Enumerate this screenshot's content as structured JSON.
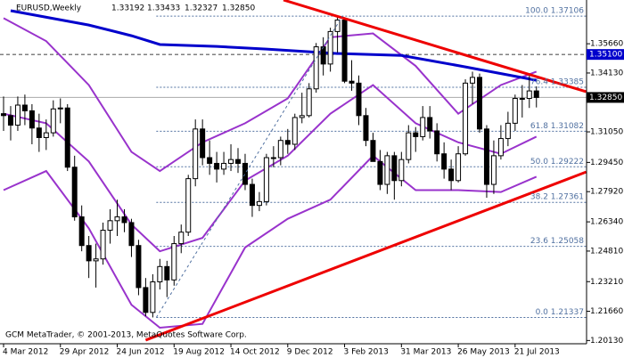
{
  "chart_data": {
    "type": "candlestick",
    "header": {
      "title": "EURUSD,Weekly",
      "values": [
        1.33192,
        1.33433,
        1.32327,
        1.3285
      ],
      "value_labels": [
        "1.33192",
        "1.33433",
        "1.32327",
        "1.32850"
      ]
    },
    "watermark": "GCM MetaTrader, © 2001-2013, MetaQuotes Software Corp.",
    "categories": [
      "4 Mar 2012",
      null,
      null,
      null,
      null,
      null,
      null,
      null,
      "29 Apr 2012",
      null,
      null,
      null,
      null,
      null,
      null,
      null,
      "24 Jun 2012",
      null,
      null,
      null,
      null,
      null,
      null,
      null,
      "19 Aug 2012",
      null,
      null,
      null,
      null,
      null,
      null,
      null,
      "14 Oct 2012",
      null,
      null,
      null,
      null,
      null,
      null,
      null,
      "9 Dec 2012",
      null,
      null,
      null,
      null,
      null,
      null,
      null,
      "3 Feb 2013",
      null,
      null,
      null,
      null,
      null,
      null,
      null,
      "31 Mar 2013",
      null,
      null,
      null,
      null,
      null,
      null,
      null,
      "26 May 2013",
      null,
      null,
      null,
      null,
      null,
      null,
      null,
      "21 Jul 2013",
      null,
      null,
      null
    ],
    "open": [
      1.32,
      1.319,
      1.314,
      1.3245,
      1.3215,
      1.3125,
      1.3075,
      1.31,
      1.3225,
      1.323,
      1.292,
      1.266,
      1.251,
      1.243,
      1.244,
      1.259,
      1.264,
      1.266,
      1.263,
      1.251,
      1.229,
      1.216,
      1.232,
      1.24,
      1.233,
      1.252,
      1.258,
      1.286,
      1.312,
      1.297,
      1.294,
      1.291,
      1.294,
      1.296,
      1.294,
      1.283,
      1.272,
      1.274,
      1.297,
      1.297,
      1.306,
      1.304,
      1.318,
      1.319,
      1.333,
      1.355,
      1.346,
      1.363,
      1.369,
      1.337,
      1.336,
      1.319,
      1.306,
      1.295,
      1.283,
      1.298,
      1.285,
      1.296,
      1.31,
      1.308,
      1.318,
      1.311,
      1.299,
      1.291,
      1.285,
      1.299,
      1.336,
      1.339,
      1.312,
      1.283,
      1.298,
      1.307,
      1.315,
      1.328,
      1.328,
      1.33192
    ],
    "high": [
      1.329,
      1.324,
      1.329,
      1.33,
      1.325,
      1.32,
      1.317,
      1.327,
      1.328,
      1.325,
      1.298,
      1.272,
      1.256,
      1.252,
      1.263,
      1.27,
      1.275,
      1.27,
      1.265,
      1.254,
      1.234,
      1.236,
      1.244,
      1.243,
      1.256,
      1.262,
      1.288,
      1.317,
      1.317,
      1.306,
      1.3,
      1.3,
      1.304,
      1.302,
      1.299,
      1.286,
      1.279,
      1.299,
      1.303,
      1.308,
      1.312,
      1.32,
      1.331,
      1.336,
      1.357,
      1.36,
      1.365,
      1.37106,
      1.37,
      1.348,
      1.34,
      1.323,
      1.31,
      1.301,
      1.3,
      1.3,
      1.3,
      1.314,
      1.313,
      1.324,
      1.324,
      1.315,
      1.305,
      1.296,
      1.303,
      1.338,
      1.342,
      1.341,
      1.314,
      1.306,
      1.314,
      1.321,
      1.33,
      1.335,
      1.341,
      1.33433
    ],
    "low": [
      1.311,
      1.306,
      1.311,
      1.314,
      1.304,
      1.3,
      1.301,
      1.308,
      1.315,
      1.29,
      1.264,
      1.248,
      1.234,
      1.229,
      1.241,
      1.252,
      1.256,
      1.258,
      1.245,
      1.225,
      1.214,
      1.21337,
      1.228,
      1.224,
      1.23,
      1.247,
      1.256,
      1.282,
      1.293,
      1.288,
      1.284,
      1.288,
      1.29,
      1.289,
      1.28,
      1.266,
      1.269,
      1.272,
      1.292,
      1.293,
      1.299,
      1.301,
      1.315,
      1.318,
      1.331,
      1.34,
      1.342,
      1.352,
      1.336,
      1.332,
      1.314,
      1.303,
      1.295,
      1.28,
      1.278,
      1.275,
      1.282,
      1.294,
      1.3,
      1.306,
      1.307,
      1.295,
      1.286,
      1.28,
      1.284,
      1.298,
      1.325,
      1.31,
      1.276,
      1.278,
      1.296,
      1.303,
      1.311,
      1.318,
      1.323,
      1.32327
    ],
    "close": [
      1.319,
      1.314,
      1.3245,
      1.3215,
      1.3125,
      1.3075,
      1.31,
      1.3225,
      1.323,
      1.292,
      1.266,
      1.251,
      1.243,
      1.244,
      1.259,
      1.264,
      1.266,
      1.263,
      1.251,
      1.229,
      1.216,
      1.232,
      1.24,
      1.233,
      1.252,
      1.258,
      1.286,
      1.312,
      1.297,
      1.294,
      1.291,
      1.294,
      1.296,
      1.294,
      1.283,
      1.272,
      1.274,
      1.297,
      1.297,
      1.306,
      1.304,
      1.318,
      1.319,
      1.333,
      1.355,
      1.346,
      1.363,
      1.369,
      1.337,
      1.336,
      1.319,
      1.306,
      1.295,
      1.283,
      1.298,
      1.285,
      1.296,
      1.31,
      1.308,
      1.318,
      1.311,
      1.299,
      1.291,
      1.285,
      1.299,
      1.336,
      1.339,
      1.312,
      1.283,
      1.298,
      1.307,
      1.315,
      1.328,
      1.328,
      1.33192,
      1.3285
    ],
    "up_color": "#ffffff",
    "down_color": "#000000",
    "ylim": [
      1.1996,
      1.3795
    ],
    "yticks": [
      {
        "value": 1.2013,
        "label": "1.20130"
      },
      {
        "value": 1.2166,
        "label": "1.21660"
      },
      {
        "value": 1.2321,
        "label": "1.23210"
      },
      {
        "value": 1.2481,
        "label": "1.24810"
      },
      {
        "value": 1.2634,
        "label": "1.26340"
      },
      {
        "value": 1.2792,
        "label": "1.27920"
      },
      {
        "value": 1.2945,
        "label": "1.29450"
      },
      {
        "value": 1.3105,
        "label": "1.31050"
      },
      {
        "value": 1.3413,
        "label": "1.34130"
      },
      {
        "value": 1.3566,
        "label": "1.35660"
      }
    ],
    "overlays": [
      {
        "color": "#9933cc",
        "width": 2,
        "x": [
          0,
          6,
          12,
          18,
          22,
          28,
          34,
          40,
          46,
          52,
          58,
          64,
          70,
          75
        ],
        "values": [
          1.37,
          1.358,
          1.335,
          1.3,
          1.29,
          1.305,
          1.315,
          1.328,
          1.36,
          1.362,
          1.345,
          1.32,
          1.335,
          1.342
        ]
      },
      {
        "color": "#9933cc",
        "width": 2,
        "x": [
          0,
          6,
          12,
          18,
          22,
          28,
          34,
          40,
          46,
          52,
          58,
          64,
          70,
          75
        ],
        "values": [
          1.32,
          1.315,
          1.295,
          1.262,
          1.248,
          1.255,
          1.285,
          1.298,
          1.32,
          1.335,
          1.315,
          1.305,
          1.299,
          1.308
        ]
      },
      {
        "color": "#9933cc",
        "width": 2,
        "x": [
          0,
          6,
          12,
          18,
          22,
          28,
          34,
          40,
          46,
          52,
          58,
          64,
          70,
          75
        ],
        "values": [
          1.28,
          1.29,
          1.26,
          1.22,
          1.208,
          1.21,
          1.25,
          1.265,
          1.275,
          1.298,
          1.28,
          1.28,
          1.279,
          1.287
        ]
      },
      {
        "color": "#0000cc",
        "width": 3,
        "x": [
          1,
          12,
          18,
          22,
          30,
          37,
          47,
          56,
          65,
          75
        ],
        "values": [
          1.3739,
          1.3664,
          1.3608,
          1.3562,
          1.3552,
          1.3538,
          1.3515,
          1.3505,
          1.3445,
          1.3375
        ]
      },
      {
        "color": "#ee0000",
        "width": 3,
        "x": [
          39.4,
          82
        ],
        "values": [
          1.3795,
          1.3315
        ]
      },
      {
        "color": "#ee0000",
        "width": 3,
        "x": [
          20,
          82
        ],
        "values": [
          1.2015,
          1.2895
        ]
      },
      {
        "color": "#5070a0",
        "width": 1,
        "dash": true,
        "x": [
          21.5,
          47.7
        ],
        "values": [
          1.21337,
          1.37106
        ]
      }
    ],
    "fib_levels": [
      {
        "value": 1.37106,
        "label": "100.0 1.37106"
      },
      {
        "value": 1.33385,
        "label": "76.4 1.33385"
      },
      {
        "value": 1.31082,
        "label": "61.8 1.31082"
      },
      {
        "value": 1.29222,
        "label": "50.0 1.29222"
      },
      {
        "value": 1.27361,
        "label": "38.2 1.27361"
      },
      {
        "value": 1.25058,
        "label": "23.6 1.25058"
      },
      {
        "value": 1.21337,
        "label": "0.0 1.21337"
      }
    ],
    "fib_start": 21.5,
    "fib_color": "#5070a0",
    "levels": [
      {
        "value": 1.351,
        "label": "1.35100",
        "color": "#0000cc"
      }
    ],
    "price_line": {
      "value": 1.3285,
      "label": "1.32850",
      "color": "#000000"
    }
  }
}
